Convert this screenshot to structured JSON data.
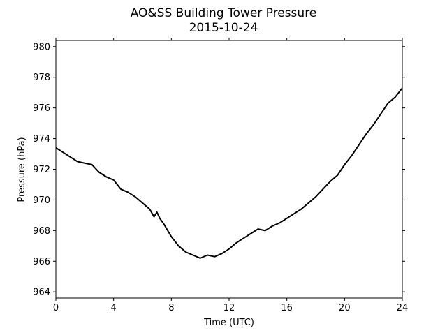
{
  "chart_data": {
    "type": "line",
    "title": "AO&SS Building Tower Pressure",
    "subtitle": "2015-10-24",
    "xlabel": "Time (UTC)",
    "ylabel": "Pressure (hPa)",
    "xlim": [
      0,
      24
    ],
    "ylim": [
      963.6,
      980.4
    ],
    "xticks": [
      0,
      4,
      8,
      12,
      16,
      20,
      24
    ],
    "yticks": [
      964,
      966,
      968,
      970,
      972,
      974,
      976,
      978,
      980
    ],
    "grid": false,
    "legend": "none",
    "line_color": "#000000",
    "series": [
      {
        "x": [
          0,
          0.5,
          1,
          1.5,
          2,
          2.5,
          3,
          3.5,
          4,
          4.5,
          5,
          5.5,
          6,
          6.5,
          6.8,
          7,
          7.2,
          7.5,
          8,
          8.5,
          9,
          9.5,
          10,
          10.5,
          11,
          11.5,
          12,
          12.5,
          13,
          13.5,
          14,
          14.5,
          15,
          15.5,
          16,
          16.5,
          17,
          17.5,
          18,
          18.5,
          19,
          19.5,
          20,
          20.5,
          21,
          21.5,
          22,
          22.5,
          23,
          23.5,
          24
        ],
        "values": [
          973.4,
          973.1,
          972.8,
          972.5,
          972.4,
          972.3,
          971.8,
          971.5,
          971.3,
          970.7,
          970.5,
          970.2,
          969.8,
          969.4,
          968.9,
          969.2,
          968.8,
          968.4,
          967.6,
          967.0,
          966.6,
          966.4,
          966.2,
          966.4,
          966.3,
          966.5,
          966.8,
          967.2,
          967.5,
          967.8,
          968.1,
          968.0,
          968.3,
          968.5,
          968.8,
          969.1,
          969.4,
          969.8,
          970.2,
          970.7,
          971.2,
          971.6,
          972.3,
          972.9,
          973.6,
          974.3,
          974.9,
          975.6,
          976.3,
          976.7,
          977.3
        ]
      }
    ]
  }
}
